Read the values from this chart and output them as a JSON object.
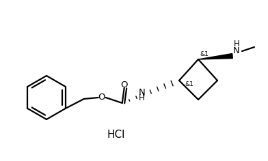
{
  "background_color": "#ffffff",
  "line_color": "#000000",
  "line_width": 1.6,
  "hcl_text": "HCl",
  "stereo_label_top": "&1",
  "stereo_label_bottom": "&1",
  "figsize": [
    3.92,
    2.36
  ],
  "dpi": 100
}
